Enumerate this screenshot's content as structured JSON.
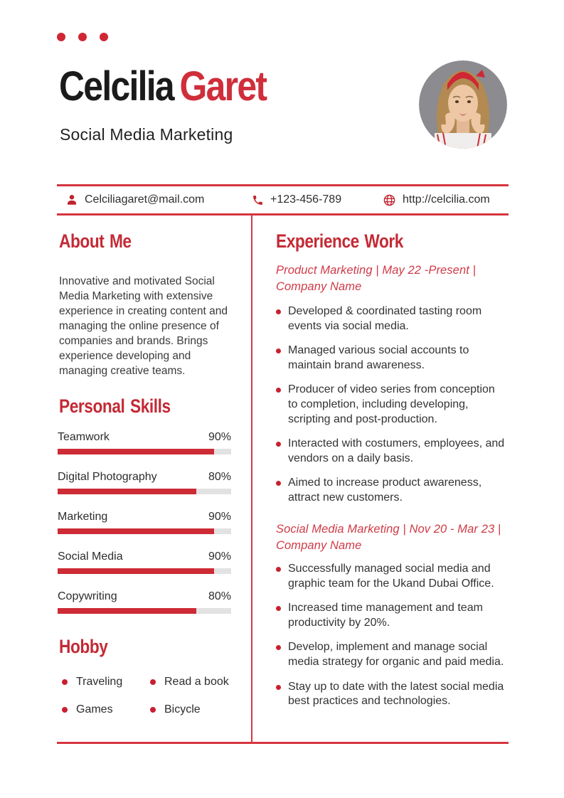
{
  "colors": {
    "accent_heading": "#c32a35",
    "accent_line": "#d6353f",
    "accent_bar": "#cd2b36",
    "accent_dot": "#c8202f",
    "name_black": "#1b1b1b",
    "track_gray": "#e2e2e2"
  },
  "header": {
    "name_first": "Celcilia",
    "name_last": "Garet",
    "subtitle": "Social Media Marketing"
  },
  "contact": {
    "email": "Celciliagaret@mail.com",
    "phone": "+123-456-789",
    "website": "http://celcilia.com"
  },
  "about": {
    "title": "About Me",
    "body": "Innovative and motivated Social Media Marketing with extensive experience in creating content and managing the online presence of companies and brands. Brings experience developing and managing creative teams."
  },
  "skills": {
    "title": "Personal Skills",
    "items": [
      {
        "label": "Teamwork",
        "percent": "90%",
        "value": 90
      },
      {
        "label": "Digital Photography",
        "percent": "80%",
        "value": 80
      },
      {
        "label": "Marketing",
        "percent": "90%",
        "value": 90
      },
      {
        "label": "Social Media",
        "percent": "90%",
        "value": 90
      },
      {
        "label": "Copywriting",
        "percent": "80%",
        "value": 80
      }
    ]
  },
  "hobby": {
    "title": "Hobby",
    "items": [
      "Traveling",
      "Read a book",
      "Games",
      "Bicycle"
    ]
  },
  "experience": {
    "title": "Experience Work",
    "jobs": [
      {
        "heading": "Product Marketing | May 22 -Present | Company Name",
        "bullets": [
          "Developed & coordinated tasting room events via social media.",
          "Managed various social accounts to maintain brand awareness.",
          "Producer of video series from conception to completion, including developing, scripting and post-production.",
          "Interacted with costumers, employees, and vendors on a daily basis.",
          "Aimed to increase product awareness, attract new customers."
        ]
      },
      {
        "heading": "Social Media Marketing | Nov 20 - Mar 23 | Company Name",
        "bullets": [
          "Successfully managed social media and graphic team for the Ukand Dubai Office.",
          "Increased time management and team productivity by 20%.",
          "Develop, implement and manage social media strategy for organic and paid media.",
          "Stay up to date with the latest social media best practices and technologies."
        ]
      }
    ]
  }
}
